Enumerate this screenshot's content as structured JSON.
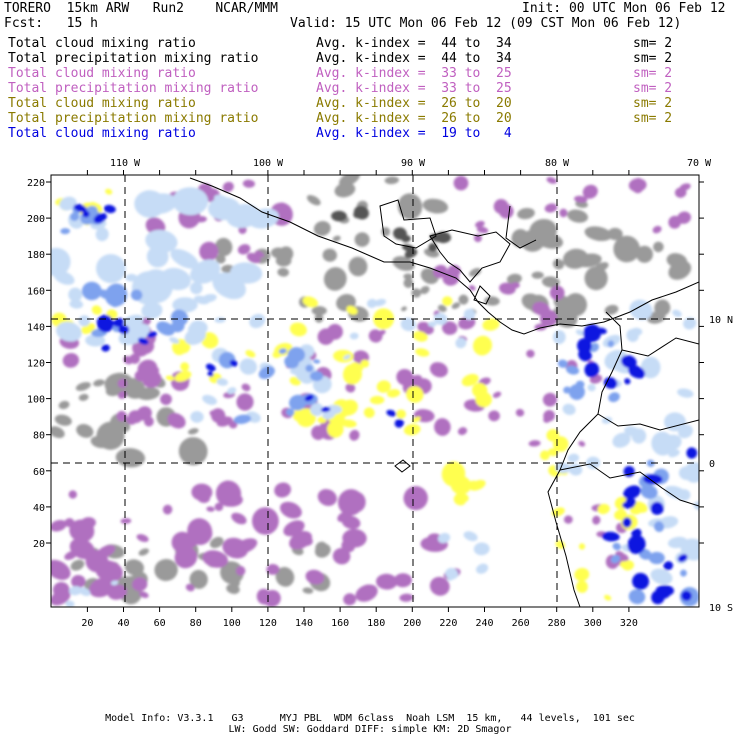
{
  "header": {
    "model": "TORERO  15km ARW   Run2    NCAR/MMM",
    "init": "Init: 00 UTC Mon 06 Feb 12",
    "fcst": "Fcst:   15 h",
    "valid": "Valid: 15 UTC Mon 06 Feb 12 (09 CST Mon 06 Feb 12)"
  },
  "legend": [
    {
      "field": "Total cloud mixing ratio",
      "kindex": "Avg. k-index =  44 to  34",
      "sm": "sm= 2",
      "color": "#000000"
    },
    {
      "field": "Total precipitation mixing ratio",
      "kindex": "Avg. k-index =  44 to  34",
      "sm": "sm= 2",
      "color": "#000000"
    },
    {
      "field": "Total cloud mixing ratio",
      "kindex": "Avg. k-index =  33 to  25",
      "sm": "sm= 2",
      "color": "#c060c0"
    },
    {
      "field": "Total precipitation mixing ratio",
      "kindex": "Avg. k-index =  33 to  25",
      "sm": "sm= 2",
      "color": "#c060c0"
    },
    {
      "field": "Total cloud mixing ratio",
      "kindex": "Avg. k-index =  26 to  20",
      "sm": "sm= 2",
      "color": "#8a7a00"
    },
    {
      "field": "Total precipitation mixing ratio",
      "kindex": "Avg. k-index =  26 to  20",
      "sm": "sm= 2",
      "color": "#8a7a00"
    },
    {
      "field": "Total cloud mixing ratio",
      "kindex": "Avg. k-index =  19 to   4",
      "sm": "",
      "color": "#0000e0"
    }
  ],
  "axes": {
    "lon_labels": [
      "110 W",
      "100 W",
      "90 W",
      "80 W",
      "70 W"
    ],
    "lat_labels": [
      "10 N",
      "0",
      "10 S"
    ],
    "x_ticks": [
      "20",
      "40",
      "60",
      "80",
      "100",
      "120",
      "140",
      "160",
      "180",
      "200",
      "220",
      "240",
      "260",
      "280",
      "300",
      "320"
    ],
    "y_ticks": [
      "220",
      "200",
      "180",
      "160",
      "140",
      "120",
      "100",
      "80",
      "60",
      "40",
      "20"
    ]
  },
  "colors": {
    "gray": "#9a9a9a",
    "dark_gray": "#555555",
    "purple": "#b070c0",
    "yellow": "#ffff50",
    "light_blue": "#c6dcf6",
    "mid_blue": "#7ea2ee",
    "blue": "#0a14e0"
  },
  "footer": {
    "line1": "Model Info: V3.3.1   G3      MYJ PBL  WDM 6class  Noah LSM  15 km,   44 levels,  101 sec",
    "line2": "LW: Godd SW: Goddard DIFF: simple KM: 2D Smagor"
  }
}
